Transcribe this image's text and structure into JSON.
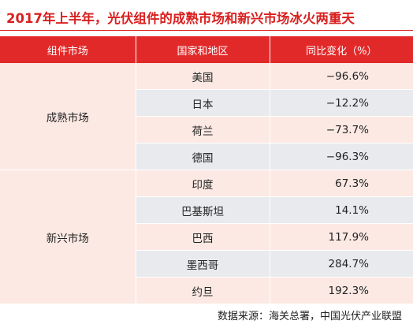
{
  "title": "2017年上半年，光伏组件的成熟市场和新兴市场冰火两重天",
  "table": {
    "headers": [
      "组件市场",
      "国家和地区",
      "同比变化（%）"
    ],
    "groups": [
      {
        "name": "成熟市场",
        "rows": [
          {
            "country": "美国",
            "change": "−96.6%"
          },
          {
            "country": "日本",
            "change": "−12.2%"
          },
          {
            "country": "荷兰",
            "change": "−73.7%"
          },
          {
            "country": "德国",
            "change": "−96.3%"
          }
        ]
      },
      {
        "name": "新兴市场",
        "rows": [
          {
            "country": "印度",
            "change": "67.3%"
          },
          {
            "country": "巴基斯坦",
            "change": "14.1%"
          },
          {
            "country": "巴西",
            "change": "117.9%"
          },
          {
            "country": "墨西哥",
            "change": "284.7%"
          },
          {
            "country": "约旦",
            "change": "192.3%"
          }
        ]
      }
    ]
  },
  "source": "数据来源：海关总署，中国光伏产业联盟",
  "colors": {
    "accent": "#e2292a",
    "title": "#d9201f",
    "row_pink": "#fce9e3",
    "row_gray": "#e9eaee"
  }
}
